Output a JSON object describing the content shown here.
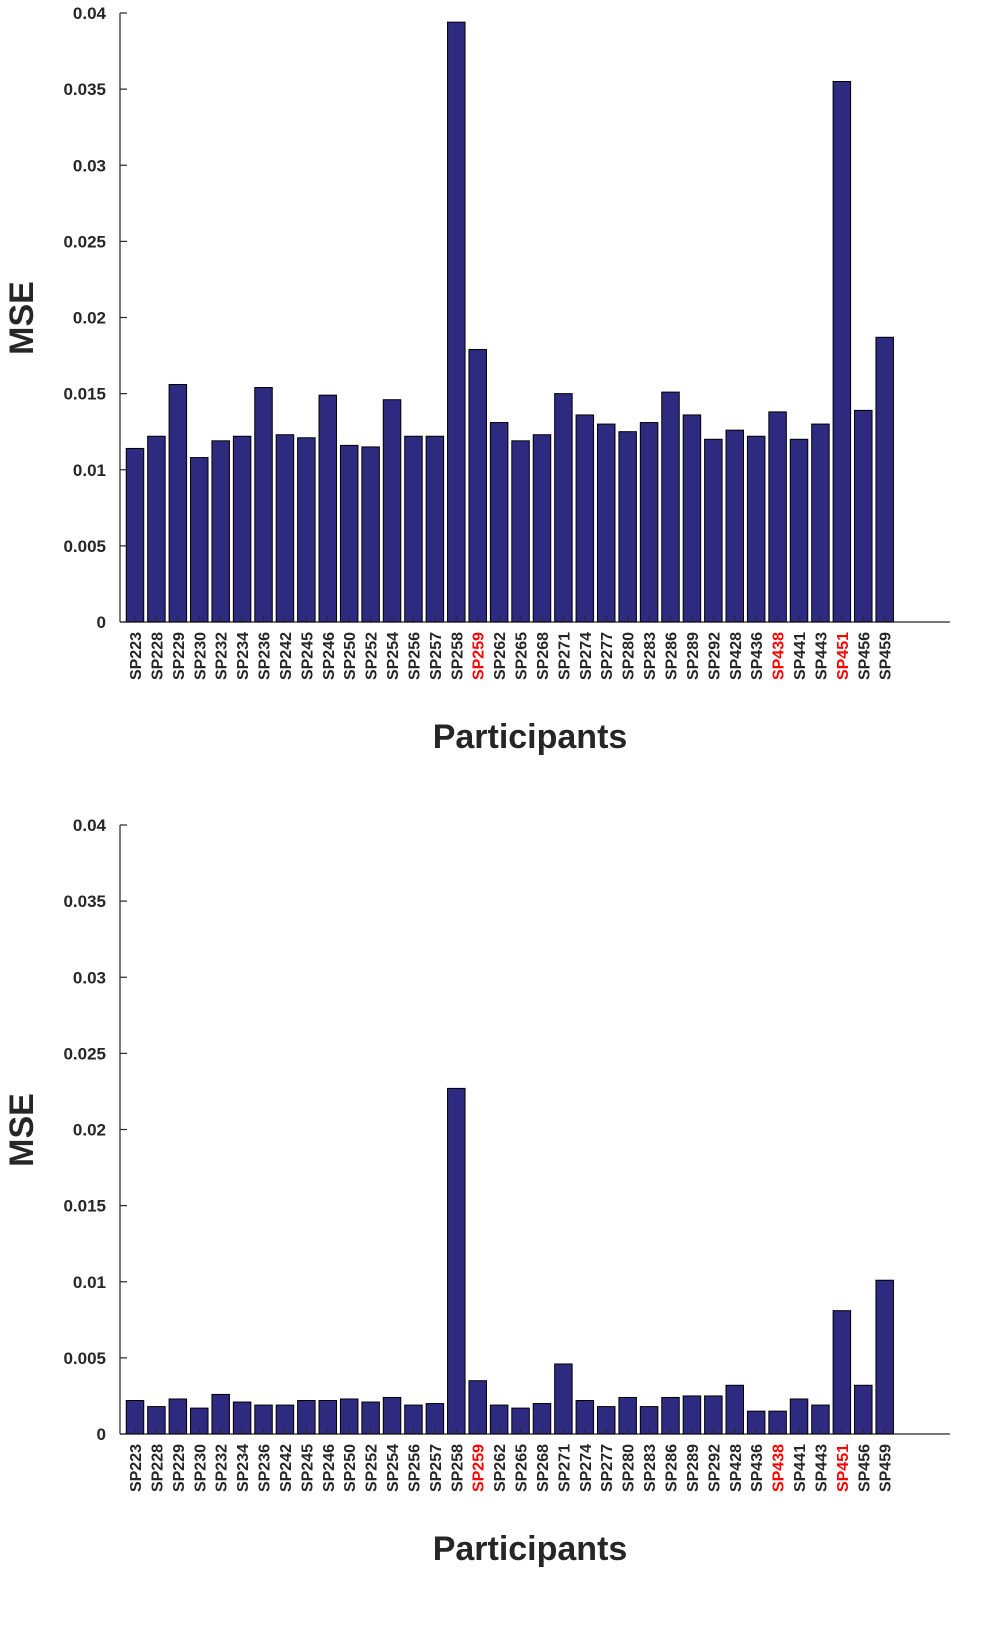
{
  "chart_data": [
    {
      "type": "bar",
      "xlabel": "Participants",
      "ylabel": "MSE",
      "ylim": [
        0,
        0.04
      ],
      "yticks": [
        "0",
        "0.005",
        "0.01",
        "0.015",
        "0.02",
        "0.025",
        "0.03",
        "0.035",
        "0.04"
      ],
      "grid": false,
      "bar_color": "#2e2a80",
      "highlight_color": "#ff0000",
      "highlighted_categories": [
        "SP259",
        "SP438",
        "SP451"
      ],
      "categories": [
        "SP223",
        "SP228",
        "SP229",
        "SP230",
        "SP232",
        "SP234",
        "SP236",
        "SP242",
        "SP245",
        "SP246",
        "SP250",
        "SP252",
        "SP254",
        "SP256",
        "SP257",
        "SP258",
        "SP259",
        "SP262",
        "SP265",
        "SP268",
        "SP271",
        "SP274",
        "SP277",
        "SP280",
        "SP283",
        "SP286",
        "SP289",
        "SP292",
        "SP428",
        "SP436",
        "SP438",
        "SP441",
        "SP443",
        "SP451",
        "SP456",
        "SP459"
      ],
      "values": [
        0.0114,
        0.0122,
        0.0156,
        0.0108,
        0.0119,
        0.0122,
        0.0154,
        0.0123,
        0.0121,
        0.0149,
        0.0116,
        0.0115,
        0.0146,
        0.0122,
        0.0122,
        0.0394,
        0.0179,
        0.0131,
        0.0119,
        0.0123,
        0.015,
        0.0136,
        0.013,
        0.0125,
        0.0131,
        0.0151,
        0.0136,
        0.012,
        0.0126,
        0.0122,
        0.0138,
        0.012,
        0.013,
        0.0355,
        0.0139,
        0.0187
      ]
    },
    {
      "type": "bar",
      "xlabel": "Participants",
      "ylabel": "MSE",
      "ylim": [
        0,
        0.04
      ],
      "yticks": [
        "0",
        "0.005",
        "0.01",
        "0.015",
        "0.02",
        "0.025",
        "0.03",
        "0.035",
        "0.04"
      ],
      "grid": false,
      "bar_color": "#2e2a80",
      "highlight_color": "#ff0000",
      "highlighted_categories": [
        "SP259",
        "SP438",
        "SP451"
      ],
      "categories": [
        "SP223",
        "SP228",
        "SP229",
        "SP230",
        "SP232",
        "SP234",
        "SP236",
        "SP242",
        "SP245",
        "SP246",
        "SP250",
        "SP252",
        "SP254",
        "SP256",
        "SP257",
        "SP258",
        "SP259",
        "SP262",
        "SP265",
        "SP268",
        "SP271",
        "SP274",
        "SP277",
        "SP280",
        "SP283",
        "SP286",
        "SP289",
        "SP292",
        "SP428",
        "SP436",
        "SP438",
        "SP441",
        "SP443",
        "SP451",
        "SP456",
        "SP459"
      ],
      "values": [
        0.0022,
        0.0018,
        0.0023,
        0.0017,
        0.0026,
        0.0021,
        0.0019,
        0.0019,
        0.0022,
        0.0022,
        0.0023,
        0.0021,
        0.0024,
        0.0019,
        0.002,
        0.0227,
        0.0035,
        0.0019,
        0.0017,
        0.002,
        0.0046,
        0.0022,
        0.0018,
        0.0024,
        0.0018,
        0.0024,
        0.0025,
        0.0025,
        0.0032,
        0.0015,
        0.0015,
        0.0023,
        0.0019,
        0.0081,
        0.0032,
        0.0101
      ]
    }
  ]
}
